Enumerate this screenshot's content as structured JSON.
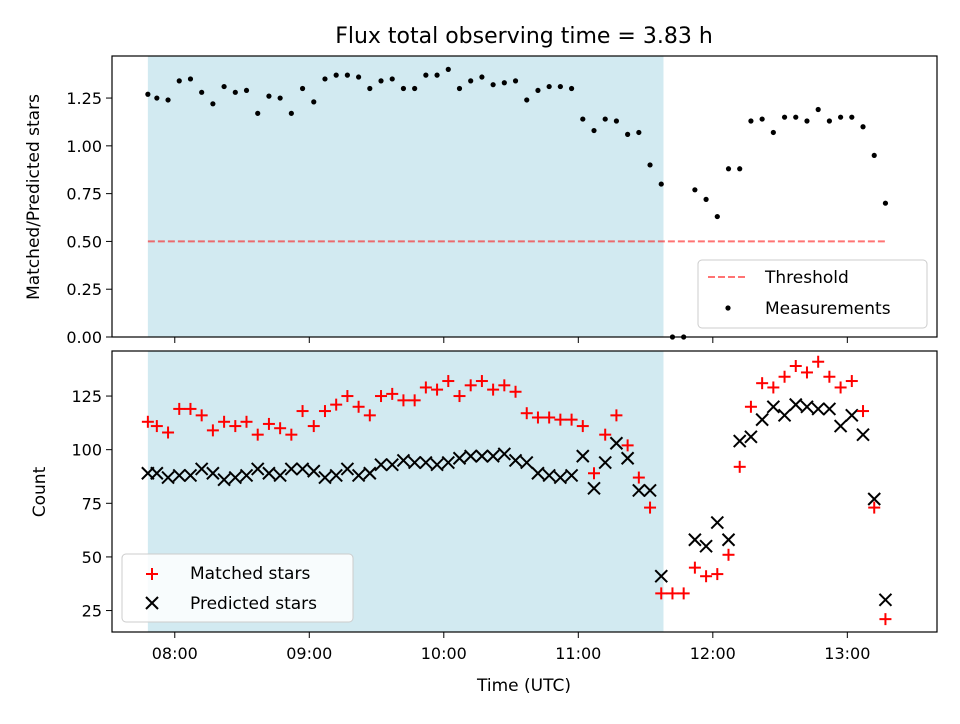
{
  "title": "Flux total observing time = 3.83 h",
  "colors": {
    "shade": "#add8e6",
    "threshold": "#ff0000",
    "measurements": "#000000",
    "matched": "#ff0000",
    "predicted": "#000000"
  },
  "chart_data": [
    {
      "type": "scatter",
      "ylabel": "Matched/Predicted stars",
      "xlabel": "",
      "xlim": [
        "07:32",
        "13:40"
      ],
      "ylim": [
        0,
        1.47
      ],
      "yticks": [
        "0.00",
        "0.25",
        "0.50",
        "0.75",
        "1.00",
        "1.25"
      ],
      "shaded_region": [
        "07:48",
        "11:38"
      ],
      "threshold": {
        "name": "Threshold",
        "y": 0.5,
        "x": [
          "07:48",
          "13:18"
        ]
      },
      "legend": {
        "position": "lower right",
        "entries": [
          "Threshold",
          "Measurements"
        ]
      },
      "series": [
        {
          "name": "Measurements",
          "x": [
            "07:48",
            "07:52",
            "07:57",
            "08:02",
            "08:07",
            "08:12",
            "08:17",
            "08:22",
            "08:27",
            "08:32",
            "08:37",
            "08:42",
            "08:47",
            "08:52",
            "08:57",
            "09:02",
            "09:07",
            "09:12",
            "09:17",
            "09:22",
            "09:27",
            "09:32",
            "09:37",
            "09:42",
            "09:47",
            "09:52",
            "09:57",
            "10:02",
            "10:07",
            "10:12",
            "10:17",
            "10:22",
            "10:27",
            "10:32",
            "10:37",
            "10:42",
            "10:47",
            "10:52",
            "10:57",
            "11:02",
            "11:07",
            "11:12",
            "11:17",
            "11:22",
            "11:27",
            "11:32",
            "11:37",
            "11:42",
            "11:47",
            "11:52",
            "11:57",
            "12:02",
            "12:07",
            "12:12",
            "12:17",
            "12:22",
            "12:27",
            "12:32",
            "12:37",
            "12:42",
            "12:47",
            "12:52",
            "12:57",
            "13:02",
            "13:07",
            "13:12",
            "13:17"
          ],
          "y": [
            1.27,
            1.25,
            1.24,
            1.34,
            1.35,
            1.28,
            1.22,
            1.31,
            1.28,
            1.29,
            1.17,
            1.26,
            1.25,
            1.17,
            1.3,
            1.23,
            1.35,
            1.37,
            1.37,
            1.36,
            1.3,
            1.34,
            1.35,
            1.3,
            1.3,
            1.37,
            1.37,
            1.4,
            1.3,
            1.34,
            1.36,
            1.32,
            1.33,
            1.34,
            1.24,
            1.29,
            1.31,
            1.31,
            1.3,
            1.14,
            1.08,
            1.14,
            1.13,
            1.06,
            1.07,
            0.9,
            0.8,
            0.0,
            0.0,
            0.77,
            0.72,
            0.63,
            0.88,
            0.88,
            1.13,
            1.14,
            1.07,
            1.15,
            1.15,
            1.13,
            1.19,
            1.13,
            1.15,
            1.15,
            1.1,
            0.95,
            0.7
          ]
        }
      ]
    },
    {
      "type": "scatter",
      "ylabel": "Count",
      "xlabel": "Time (UTC)",
      "xlim": [
        "07:32",
        "13:40"
      ],
      "ylim": [
        15,
        146
      ],
      "yticks": [
        "25",
        "50",
        "75",
        "100",
        "125"
      ],
      "xticks": [
        "08:00",
        "09:00",
        "10:00",
        "11:00",
        "12:00",
        "13:00"
      ],
      "shaded_region": [
        "07:48",
        "11:38"
      ],
      "legend": {
        "position": "lower left",
        "entries": [
          "Matched stars",
          "Predicted stars"
        ]
      },
      "series": [
        {
          "name": "Matched stars",
          "marker": "plus",
          "x": [
            "07:48",
            "07:52",
            "07:57",
            "08:02",
            "08:07",
            "08:12",
            "08:17",
            "08:22",
            "08:27",
            "08:32",
            "08:37",
            "08:42",
            "08:47",
            "08:52",
            "08:57",
            "09:02",
            "09:07",
            "09:12",
            "09:17",
            "09:22",
            "09:27",
            "09:32",
            "09:37",
            "09:42",
            "09:47",
            "09:52",
            "09:57",
            "10:02",
            "10:07",
            "10:12",
            "10:17",
            "10:22",
            "10:27",
            "10:32",
            "10:37",
            "10:42",
            "10:47",
            "10:52",
            "10:57",
            "11:02",
            "11:07",
            "11:12",
            "11:17",
            "11:22",
            "11:27",
            "11:32",
            "11:37",
            "11:42",
            "11:47",
            "11:52",
            "11:57",
            "12:02",
            "12:07",
            "12:12",
            "12:17",
            "12:22",
            "12:27",
            "12:32",
            "12:37",
            "12:42",
            "12:47",
            "12:52",
            "12:57",
            "13:02",
            "13:07",
            "13:12",
            "13:17"
          ],
          "y": [
            113,
            111,
            108,
            119,
            119,
            116,
            109,
            113,
            111,
            113,
            107,
            112,
            110,
            107,
            118,
            111,
            118,
            121,
            125,
            120,
            116,
            125,
            126,
            123,
            123,
            129,
            128,
            132,
            125,
            130,
            132,
            128,
            130,
            127,
            117,
            115,
            115,
            114,
            114,
            111,
            89,
            107,
            116,
            102,
            87,
            73,
            33,
            33,
            33,
            45,
            41,
            42,
            51,
            92,
            120,
            131,
            129,
            134,
            139,
            136,
            141,
            134,
            129,
            132,
            118,
            73,
            21
          ]
        },
        {
          "name": "Predicted stars",
          "marker": "x",
          "x": [
            "07:48",
            "07:52",
            "07:57",
            "08:02",
            "08:07",
            "08:12",
            "08:17",
            "08:22",
            "08:27",
            "08:32",
            "08:37",
            "08:42",
            "08:47",
            "08:52",
            "08:57",
            "09:02",
            "09:07",
            "09:12",
            "09:17",
            "09:22",
            "09:27",
            "09:32",
            "09:37",
            "09:42",
            "09:47",
            "09:52",
            "09:57",
            "10:02",
            "10:07",
            "10:12",
            "10:17",
            "10:22",
            "10:27",
            "10:32",
            "10:37",
            "10:42",
            "10:47",
            "10:52",
            "10:57",
            "11:02",
            "11:07",
            "11:12",
            "11:17",
            "11:22",
            "11:27",
            "11:32",
            "11:37",
            "11:52",
            "11:57",
            "12:02",
            "12:07",
            "12:12",
            "12:17",
            "12:22",
            "12:27",
            "12:32",
            "12:37",
            "12:42",
            "12:47",
            "12:52",
            "12:57",
            "13:02",
            "13:07",
            "13:12",
            "13:17"
          ],
          "y": [
            89,
            89,
            87,
            88,
            88,
            91,
            89,
            86,
            87,
            88,
            91,
            89,
            88,
            91,
            91,
            90,
            87,
            88,
            91,
            88,
            89,
            93,
            93,
            95,
            94,
            94,
            93,
            94,
            96,
            97,
            97,
            97,
            98,
            95,
            94,
            89,
            88,
            87,
            88,
            97,
            82,
            94,
            103,
            96,
            81,
            81,
            41,
            58,
            55,
            66,
            58,
            104,
            106,
            114,
            120,
            116,
            121,
            120,
            119,
            119,
            111,
            116,
            107,
            77,
            30
          ]
        }
      ]
    }
  ]
}
